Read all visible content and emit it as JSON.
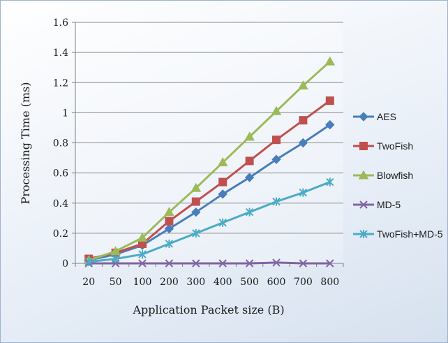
{
  "chart_data": {
    "type": "line",
    "title": "",
    "xlabel": "Application Packet size (B)",
    "ylabel": "Processing Time (ms)",
    "categories": [
      "20",
      "50",
      "100",
      "200",
      "300",
      "400",
      "500",
      "600",
      "700",
      "800"
    ],
    "ylim": [
      0,
      1.6
    ],
    "yticks": [
      "0",
      "0.2",
      "0.4",
      "0.6",
      "0.8",
      "1",
      "1.2",
      "1.4",
      "1.6"
    ],
    "grid": true,
    "legend_position": "right",
    "series": [
      {
        "name": "AES",
        "color": "#4a7ebb",
        "marker": "diamond",
        "values": [
          0.02,
          0.06,
          0.12,
          0.23,
          0.34,
          0.46,
          0.57,
          0.69,
          0.8,
          0.92
        ]
      },
      {
        "name": "TwoFish",
        "color": "#c0504d",
        "marker": "square",
        "values": [
          0.03,
          0.07,
          0.13,
          0.28,
          0.41,
          0.54,
          0.68,
          0.82,
          0.95,
          1.08
        ]
      },
      {
        "name": "Blowfish",
        "color": "#9bbb59",
        "marker": "triangle",
        "values": [
          0.02,
          0.08,
          0.17,
          0.34,
          0.5,
          0.67,
          0.84,
          1.01,
          1.18,
          1.34
        ]
      },
      {
        "name": "MD-5",
        "color": "#8064a2",
        "marker": "x",
        "values": [
          0.0,
          0.0,
          0.0,
          0.0,
          0.0,
          0.0,
          0.0,
          0.005,
          0.0,
          0.0
        ]
      },
      {
        "name": "TwoFish+MD-5",
        "color": "#4bacc6",
        "marker": "star",
        "values": [
          0.01,
          0.03,
          0.06,
          0.13,
          0.2,
          0.27,
          0.34,
          0.41,
          0.47,
          0.54
        ]
      }
    ]
  }
}
